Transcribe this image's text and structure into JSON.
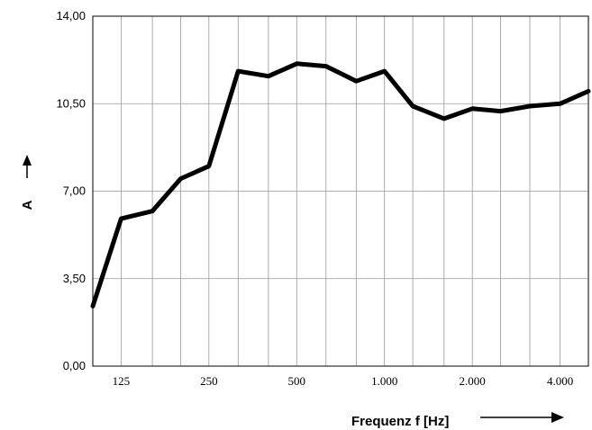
{
  "chart_data": {
    "type": "line",
    "xlabel": "Frequenz f [Hz]",
    "ylabel": "A",
    "ylim": [
      0,
      14
    ],
    "grid": true,
    "x_scale": "log",
    "y_ticks": [
      "0,00",
      "3,50",
      "7,00",
      "10,50",
      "14,00"
    ],
    "y_tick_values": [
      0,
      3.5,
      7,
      10.5,
      14
    ],
    "x_tick_labels": [
      "125",
      "250",
      "500",
      "1.000",
      "2.000",
      "4.000"
    ],
    "x_tick_values": [
      125,
      250,
      500,
      1000,
      2000,
      4000
    ],
    "x": [
      100,
      125,
      160,
      200,
      250,
      315,
      400,
      500,
      630,
      800,
      1000,
      1250,
      1600,
      2000,
      2500,
      3150,
      4000,
      5000
    ],
    "series": [
      {
        "values": [
          2.4,
          5.9,
          6.2,
          7.5,
          8.0,
          11.8,
          11.6,
          12.1,
          12.0,
          11.4,
          11.8,
          10.4,
          9.9,
          10.3,
          10.2,
          10.4,
          10.5,
          11.0
        ]
      }
    ]
  }
}
